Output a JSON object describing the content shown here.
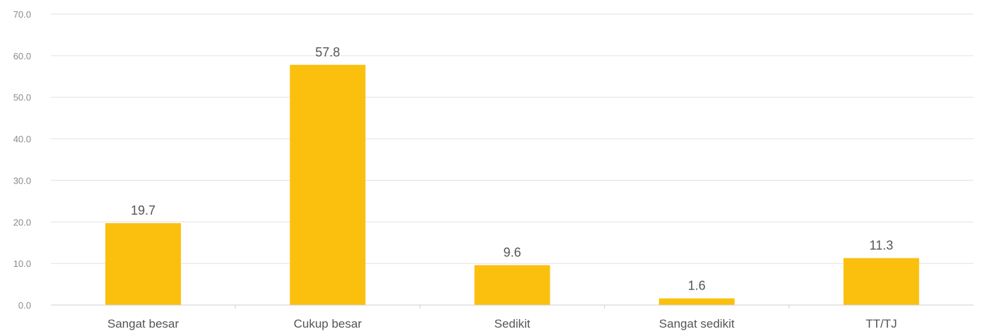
{
  "chart_data": {
    "type": "bar",
    "categories": [
      "Sangat besar",
      "Cukup besar",
      "Sedikit",
      "Sangat sedikit",
      "TT/TJ"
    ],
    "values": [
      19.7,
      57.8,
      9.6,
      1.6,
      11.3
    ],
    "data_labels": [
      "19.7",
      "57.8",
      "9.6",
      "1.6",
      "11.3"
    ],
    "ylim": [
      0,
      70
    ],
    "yticks": [
      0,
      10,
      20,
      30,
      40,
      50,
      60,
      70
    ],
    "ytick_labels": [
      "0.0",
      "10.0",
      "20.0",
      "30.0",
      "40.0",
      "50.0",
      "60.0",
      "70.0"
    ],
    "grid": true,
    "legend": "none",
    "bar_color": "#fbbf0e"
  }
}
